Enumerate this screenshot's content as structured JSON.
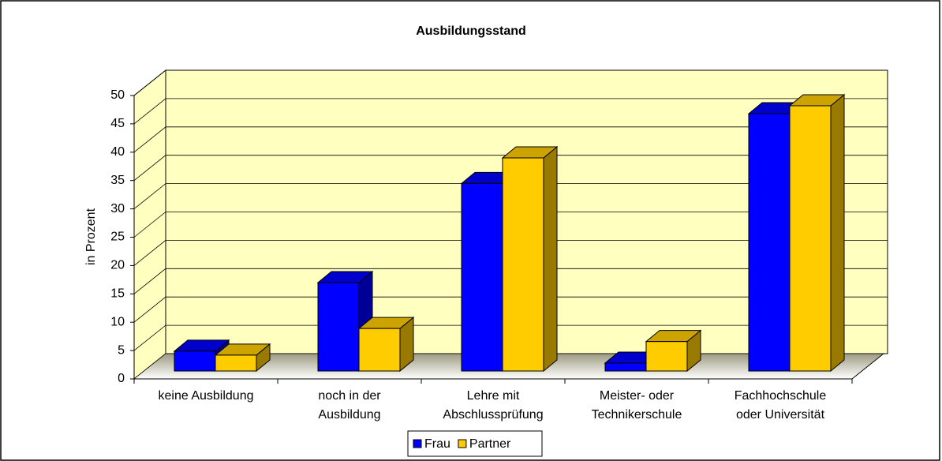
{
  "chart_data": {
    "type": "bar3d",
    "title": "Ausbildungsstand",
    "y_label": "in Prozent",
    "categories": [
      "keine Ausbildung",
      "noch in der Ausbildung",
      "Lehre mit Abschlussprüfung",
      "Meister- oder Technikerschule",
      "Fachhochschule oder Universität"
    ],
    "series": [
      {
        "name": "Frau",
        "color": "#0000ff",
        "values": [
          3.5,
          15.6,
          33.1,
          1.4,
          45.4
        ]
      },
      {
        "name": "Partner",
        "color": "#ffcc00",
        "values": [
          2.8,
          7.5,
          37.6,
          5.2,
          46.8
        ]
      }
    ],
    "ylim": [
      0,
      50
    ],
    "yticks": [
      0,
      5,
      10,
      15,
      20,
      25,
      30,
      35,
      40,
      45,
      50
    ],
    "grid": true
  }
}
